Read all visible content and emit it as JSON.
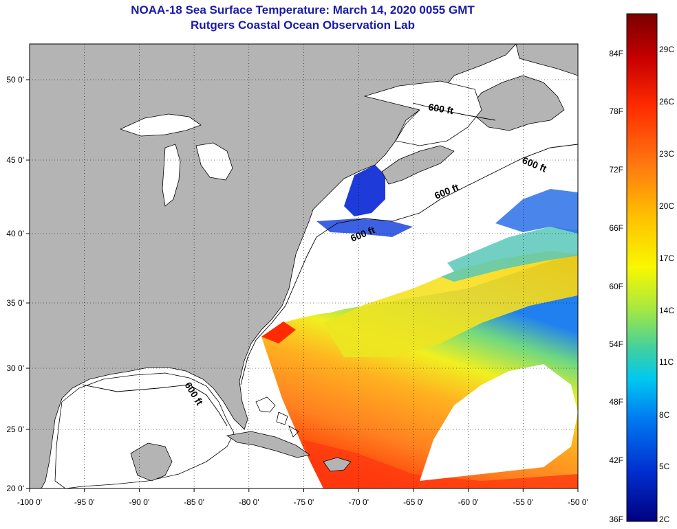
{
  "title": {
    "line1": "NOAA-18 Sea Surface Temperature:  March 14, 2020 0055 GMT",
    "line2": "Rutgers Coastal Ocean Observation Lab"
  },
  "axes": {
    "longitude_ticks": [
      "-100 0'",
      "-95 0'",
      "-90 0'",
      "-85 0'",
      "-80 0'",
      "-75 0'",
      "-70 0'",
      "-65 0'",
      "-60 0'",
      "-55 0'",
      "-50 0'"
    ],
    "latitude_ticks": [
      "50 0'",
      "45 0'",
      "40 0'",
      "35 0'",
      "30 0'",
      "25 0'",
      "20 0'"
    ]
  },
  "contour_labels": [
    "600 ft",
    "600 ft",
    "600 ft",
    "600 ft",
    "600 ft"
  ],
  "colorbar": {
    "fahrenheit_labels": [
      "84F",
      "78F",
      "72F",
      "66F",
      "60F",
      "54F",
      "48F",
      "42F",
      "36F"
    ],
    "celsius_labels": [
      "29C",
      "26C",
      "23C",
      "20C",
      "17C",
      "14C",
      "11C",
      "8C",
      "5C",
      "2C"
    ],
    "colors": [
      "#7a0000",
      "#c80000",
      "#ff2a00",
      "#ff7a10",
      "#ffc000",
      "#f8f800",
      "#a8e840",
      "#40d0a0",
      "#00c8f0",
      "#0078f0",
      "#0030d0",
      "#000080"
    ]
  },
  "map_colors": {
    "land": "#b4b4b4",
    "no_data": "#ffffff",
    "coastline": "#000000"
  }
}
